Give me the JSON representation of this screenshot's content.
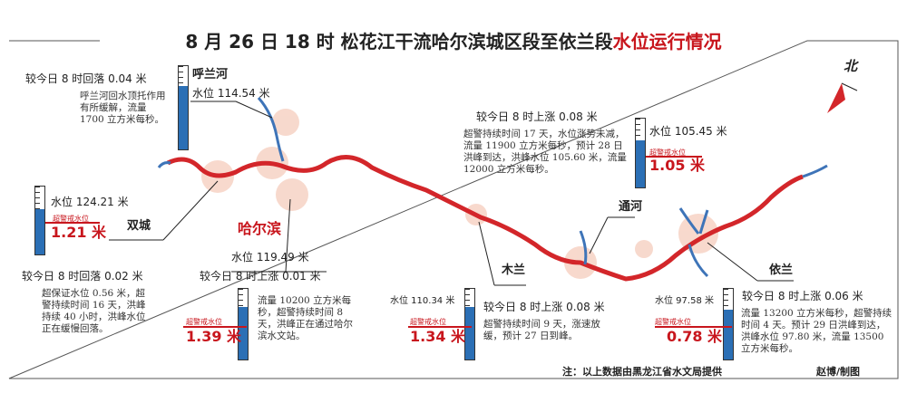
{
  "header": {
    "title": "8 月 26 日 18 时  松花江干流哈尔滨城区段至依兰段",
    "title_highlight": "水位运行情况"
  },
  "north": "北",
  "stations": [
    {
      "name": "呼兰河",
      "level": "水位 114.54 米",
      "change": "较今日 8 时回落 0.04 米",
      "description": "呼兰河回水顶托作用有所缓解，流量 1700 立方米每秒。"
    },
    {
      "name": "双城",
      "level": "水位 124.21 米",
      "alert_label": "超警戒水位",
      "over_alert": "1.21 米",
      "change": "较今日 8 时回落 0.02 米",
      "description": "超保证水位 0.56 米，超警持续时间 16 天，洪峰持续 40 小时，洪峰水位正在缓慢回落。"
    },
    {
      "name": "哈尔滨",
      "level": "水位 119.49 米",
      "alert_label": "超警戒水位",
      "over_alert": "1.39 米",
      "change": "较今日 8 时上涨 0.01 米",
      "description": "流量 10200 立方米每秒，超警持续时间 8 天，洪峰正在通过哈尔滨水文站。"
    },
    {
      "name": "木兰",
      "level": "水位 110.34 米",
      "alert_label": "超警戒水位",
      "over_alert": "1.34 米",
      "change": "较今日 8 时上涨 0.08 米",
      "description": "超警持续时间 9 天，涨速放缓，预计 27 日到峰。"
    },
    {
      "name": "通河",
      "level": "水位 105.45 米",
      "alert_label": "超警戒水位",
      "over_alert": "1.05 米",
      "change": "较今日 8 时上涨 0.08 米",
      "description": "超警持续时间 17 天，水位涨势未减，流量 11900 立方米每秒，预计 28 日洪峰到达，洪峰水位 105.60 米，流量 12000 立方米每秒。"
    },
    {
      "name": "依兰",
      "level": "水位 97.58 米",
      "alert_label": "超警戒水位",
      "over_alert": "0.78 米",
      "change": "较今日 8 时上涨 0.06 米",
      "description": "流量 13200 立方米每秒，超警持续时间 4 天。预计 29 日洪峰到达，洪峰水位 97.80 米，流量 13500 立方米每秒。"
    }
  ],
  "footer": {
    "note": "注：以上数据由黑龙江省水文局提供",
    "credit": "赵博/制图"
  }
}
